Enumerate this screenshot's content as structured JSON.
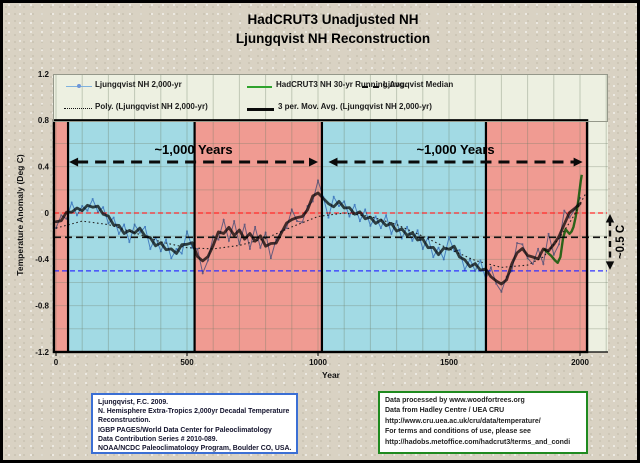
{
  "title": {
    "line1": "HadCRUT3 Unadjusted NH",
    "line2": "Ljungqvist NH Reconstruction"
  },
  "legend": {
    "entries": [
      {
        "label": "Ljungqvist NH 2,000-yr"
      },
      {
        "label": "HadCRUT3 NH 30-yr Running Avg."
      },
      {
        "label": "Ljungqvist Median"
      },
      {
        "label": "Poly. (Ljungqvist NH 2,000-yr)"
      },
      {
        "label": "3 per. Mov. Avg. (Ljungqvist NH 2,000-yr)"
      }
    ]
  },
  "annotations": {
    "span1": "~1,000 Years",
    "span2": "~1,000 Years",
    "diff_label": "~0.5 C"
  },
  "footnotes": {
    "left_lines": [
      "Ljungqvist, F.C.  2009.",
      "N. Hemisphere Extra-Tropics 2,000yr Decadal Temperature",
      "Reconstruction.",
      "IGBP PAGES/World Data Center for Paleoclimatology",
      "Data Contribution Series # 2010-089.",
      "NOAA/NCDC Paleoclimatology Program, Boulder CO, USA."
    ],
    "right_lines": [
      "Data processed by www.woodfortrees.org",
      "Data from Hadley Centre / UEA CRU",
      "http://www.cru.uea.ac.uk/cru/data/temperature/",
      "For terms and conditions of use, please see",
      "http://hadobs.metoffice.com/hadcrut3/terms_and_condi"
    ]
  },
  "chart_data": {
    "type": "line",
    "title": "HadCRUT3 Unadjusted NH / Ljungqvist NH Reconstruction",
    "xlabel": "Year",
    "ylabel": "Temperature Anomaly (Deg C)",
    "xlim": [
      -8,
      2107
    ],
    "ylim": [
      -1.2,
      1.2
    ],
    "x_ticks": [
      0,
      500,
      1000,
      1500,
      2000
    ],
    "y_ticks": [
      1.2,
      0.8,
      0.4,
      0,
      -0.4,
      -0.8,
      -1.2
    ],
    "grid": {
      "x_step": 100,
      "y_step": 0.2
    },
    "background_bands": [
      {
        "from": -8,
        "to": 46,
        "color": "#F09B92"
      },
      {
        "from": 46,
        "to": 529,
        "color": "#A2DAE4"
      },
      {
        "from": 529,
        "to": 1015,
        "color": "#F09B92"
      },
      {
        "from": 1015,
        "to": 1641,
        "color": "#A2DAE4"
      },
      {
        "from": 1641,
        "to": 2027,
        "color": "#F09B92"
      }
    ],
    "reference_lines": [
      {
        "name": "zero-line",
        "value": 0.0,
        "color": "#FF2A2A"
      },
      {
        "name": "ljungqvist-median",
        "value": -0.21,
        "color": "#111111"
      },
      {
        "name": "minus-half-line",
        "value": -0.5,
        "color": "#3333FF"
      }
    ],
    "span_annotations": [
      {
        "label": "~1,000 Years",
        "from": 50,
        "to": 1000,
        "at_value": 0.44
      },
      {
        "label": "~1,000 Years",
        "from": 1040,
        "to": 2010,
        "at_value": 0.44
      }
    ],
    "diff_annotation": {
      "label": "~0.5 C",
      "top_value": 0.0,
      "bottom_value": -0.5
    },
    "series": [
      {
        "name": "Ljungqvist NH 2,000-yr",
        "role": "raw",
        "color": "#6E96D8",
        "points": [
          [
            0,
            -0.13
          ],
          [
            20,
            -0.02
          ],
          [
            40,
            -0.05
          ],
          [
            60,
            0.09
          ],
          [
            80,
            -0.02
          ],
          [
            100,
            0.06
          ],
          [
            120,
            0.02
          ],
          [
            140,
            0.12
          ],
          [
            160,
            0.01
          ],
          [
            180,
            0.05
          ],
          [
            200,
            -0.09
          ],
          [
            220,
            -0.04
          ],
          [
            240,
            -0.18
          ],
          [
            260,
            -0.1
          ],
          [
            280,
            -0.25
          ],
          [
            300,
            -0.1
          ],
          [
            320,
            -0.17
          ],
          [
            340,
            -0.12
          ],
          [
            360,
            -0.31
          ],
          [
            380,
            -0.21
          ],
          [
            400,
            -0.33
          ],
          [
            420,
            -0.23
          ],
          [
            440,
            -0.39
          ],
          [
            460,
            -0.31
          ],
          [
            480,
            -0.35
          ],
          [
            500,
            -0.16
          ],
          [
            520,
            -0.3
          ],
          [
            540,
            -0.31
          ],
          [
            560,
            -0.52
          ],
          [
            580,
            -0.41
          ],
          [
            600,
            -0.2
          ],
          [
            620,
            -0.23
          ],
          [
            640,
            -0.06
          ],
          [
            660,
            -0.24
          ],
          [
            680,
            -0.07
          ],
          [
            700,
            -0.27
          ],
          [
            720,
            -0.1
          ],
          [
            740,
            -0.31
          ],
          [
            760,
            -0.12
          ],
          [
            780,
            -0.3
          ],
          [
            800,
            -0.17
          ],
          [
            820,
            -0.39
          ],
          [
            840,
            -0.23
          ],
          [
            860,
            -0.16
          ],
          [
            880,
            -0.13
          ],
          [
            900,
            0.03
          ],
          [
            920,
            -0.07
          ],
          [
            940,
            -0.08
          ],
          [
            960,
            0.06
          ],
          [
            980,
            0.1
          ],
          [
            1000,
            0.28
          ],
          [
            1020,
            0.14
          ],
          [
            1040,
            -0.04
          ],
          [
            1060,
            0.14
          ],
          [
            1080,
            0.06
          ],
          [
            1100,
            0.1
          ],
          [
            1120,
            -0.03
          ],
          [
            1140,
            0.07
          ],
          [
            1160,
            -0.07
          ],
          [
            1180,
            0.03
          ],
          [
            1200,
            -0.11
          ],
          [
            1220,
            -0.03
          ],
          [
            1240,
            -0.13
          ],
          [
            1260,
            -0.02
          ],
          [
            1280,
            -0.18
          ],
          [
            1300,
            -0.07
          ],
          [
            1320,
            -0.22
          ],
          [
            1340,
            -0.12
          ],
          [
            1360,
            -0.24
          ],
          [
            1380,
            -0.15
          ],
          [
            1400,
            -0.31
          ],
          [
            1420,
            -0.21
          ],
          [
            1440,
            -0.38
          ],
          [
            1460,
            -0.3
          ],
          [
            1480,
            -0.4
          ],
          [
            1500,
            -0.21
          ],
          [
            1520,
            -0.33
          ],
          [
            1540,
            -0.32
          ],
          [
            1560,
            -0.49
          ],
          [
            1580,
            -0.4
          ],
          [
            1600,
            -0.5
          ],
          [
            1620,
            -0.41
          ],
          [
            1640,
            -0.57
          ],
          [
            1660,
            -0.47
          ],
          [
            1680,
            -0.61
          ],
          [
            1700,
            -0.68
          ],
          [
            1720,
            -0.55
          ],
          [
            1740,
            -0.5
          ],
          [
            1760,
            -0.26
          ],
          [
            1780,
            -0.27
          ],
          [
            1800,
            -0.39
          ],
          [
            1820,
            -0.44
          ],
          [
            1840,
            -0.31
          ],
          [
            1860,
            -0.44
          ],
          [
            1880,
            -0.18
          ],
          [
            1900,
            -0.36
          ],
          [
            1920,
            -0.27
          ],
          [
            1940,
            0.02
          ],
          [
            1960,
            -0.04
          ],
          [
            1980,
            0.03
          ],
          [
            2000,
            0.13
          ]
        ]
      },
      {
        "name": "Poly. (Ljungqvist NH 2,000-yr)",
        "role": "poly",
        "color": "#222222",
        "points": [
          [
            0,
            -0.13
          ],
          [
            100,
            -0.07
          ],
          [
            200,
            -0.1
          ],
          [
            300,
            -0.17
          ],
          [
            400,
            -0.25
          ],
          [
            500,
            -0.3
          ],
          [
            600,
            -0.31
          ],
          [
            700,
            -0.28
          ],
          [
            800,
            -0.22
          ],
          [
            900,
            -0.12
          ],
          [
            1000,
            -0.03
          ],
          [
            1100,
            0.0
          ],
          [
            1200,
            -0.03
          ],
          [
            1300,
            -0.1
          ],
          [
            1400,
            -0.2
          ],
          [
            1500,
            -0.31
          ],
          [
            1600,
            -0.41
          ],
          [
            1700,
            -0.47
          ],
          [
            1800,
            -0.45
          ],
          [
            1860,
            -0.38
          ],
          [
            1920,
            -0.22
          ],
          [
            1970,
            -0.05
          ],
          [
            2020,
            0.16
          ]
        ]
      },
      {
        "name": "3 per. Mov. Avg. (Ljungqvist NH 2,000-yr)",
        "role": "ma",
        "color": "#474747",
        "derived_from": "raw",
        "window": 3
      },
      {
        "name": "HadCRUT3 NH 30-yr Running Avg.",
        "role": "instrumental",
        "color": "#2FA32D",
        "points": [
          [
            1862,
            -0.31
          ],
          [
            1875,
            -0.34
          ],
          [
            1890,
            -0.37
          ],
          [
            1905,
            -0.41
          ],
          [
            1915,
            -0.43
          ],
          [
            1925,
            -0.38
          ],
          [
            1935,
            -0.22
          ],
          [
            1945,
            -0.14
          ],
          [
            1952,
            -0.16
          ],
          [
            1960,
            -0.18
          ],
          [
            1968,
            -0.16
          ],
          [
            1975,
            -0.12
          ],
          [
            1982,
            -0.05
          ],
          [
            1990,
            0.05
          ],
          [
            1997,
            0.17
          ],
          [
            2003,
            0.28
          ],
          [
            2007,
            0.33
          ]
        ]
      }
    ]
  }
}
